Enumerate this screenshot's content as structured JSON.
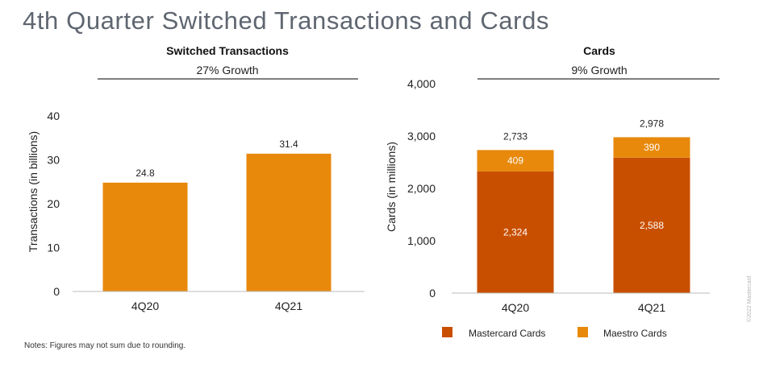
{
  "page_title": "4th Quarter Switched Transactions and Cards",
  "note": "Notes: Figures may not sum due to rounding.",
  "copyright": "©2022 Mastercard",
  "colors": {
    "primary_bar": "#E8890C",
    "mastercard": "#C94F00",
    "maestro": "#E8890C",
    "title_gray": "#5f6670"
  },
  "chart_data": [
    {
      "type": "bar",
      "title": "Switched Transactions",
      "subtitle": "27% Growth",
      "xlabel": "",
      "ylabel": "Transactions (in billions)",
      "ylim": [
        0,
        40
      ],
      "yticks": [
        0,
        10,
        20,
        30,
        40
      ],
      "categories": [
        "4Q20",
        "4Q21"
      ],
      "values": [
        24.8,
        31.4
      ],
      "value_labels": [
        "24.8",
        "31.4"
      ],
      "grid": false
    },
    {
      "type": "bar",
      "stacked": true,
      "title": "Cards",
      "subtitle": "9% Growth",
      "xlabel": "",
      "ylabel": "Cards (in millions)",
      "ylim": [
        0,
        4000
      ],
      "yticks": [
        0,
        1000,
        2000,
        3000,
        4000
      ],
      "ytick_labels": [
        "0",
        "1,000",
        "2,000",
        "3,000",
        "4,000"
      ],
      "categories": [
        "4Q20",
        "4Q21"
      ],
      "series": [
        {
          "name": "Mastercard Cards",
          "values": [
            2324,
            2588
          ],
          "value_labels": [
            "2,324",
            "2,588"
          ],
          "color": "#C94F00"
        },
        {
          "name": "Maestro Cards",
          "values": [
            409,
            390
          ],
          "value_labels": [
            "409",
            "390"
          ],
          "color": "#E8890C"
        }
      ],
      "totals": [
        2733,
        2978
      ],
      "total_labels": [
        "2,733",
        "2,978"
      ],
      "legend": "bottom",
      "grid": false
    }
  ]
}
